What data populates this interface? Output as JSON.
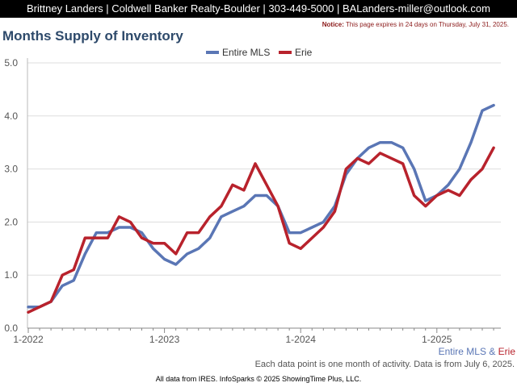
{
  "header": {
    "contact": "Brittney Landers | Coldwell Banker Realty-Boulder | 303-449-5000 | BALanders-miller@outlook.com"
  },
  "notice": {
    "label": "Notice:",
    "text": "This page expires in 24 days on Thursday, July 31, 2025."
  },
  "colors": {
    "entire_mls": "#5a76b5",
    "erie": "#b8222c",
    "title": "#2e4a6b",
    "notice": "#8b1a1a"
  },
  "caption": {
    "series1": "Entire MLS",
    "amp": " & ",
    "series2": "Erie"
  },
  "footnote": "Each data point is one month of activity. Data is from July 6, 2025.",
  "credits": "All data from IRES. InfoSparks © 2025 ShowingTime Plus, LLC.",
  "chart_data": {
    "type": "line",
    "title": "Months Supply of Inventory",
    "x": [
      "2022-01",
      "2022-02",
      "2022-03",
      "2022-04",
      "2022-05",
      "2022-06",
      "2022-07",
      "2022-08",
      "2022-09",
      "2022-10",
      "2022-11",
      "2022-12",
      "2023-01",
      "2023-02",
      "2023-03",
      "2023-04",
      "2023-05",
      "2023-06",
      "2023-07",
      "2023-08",
      "2023-09",
      "2023-10",
      "2023-11",
      "2023-12",
      "2024-01",
      "2024-02",
      "2024-03",
      "2024-04",
      "2024-05",
      "2024-06",
      "2024-07",
      "2024-08",
      "2024-09",
      "2024-10",
      "2024-11",
      "2024-12",
      "2025-01",
      "2025-02",
      "2025-03",
      "2025-04",
      "2025-05",
      "2025-06"
    ],
    "x_tick_labels": [
      "1-2022",
      "1-2023",
      "1-2024",
      "1-2025"
    ],
    "y_tick_labels": [
      "0.0",
      "1.0",
      "2.0",
      "3.0",
      "4.0",
      "5.0"
    ],
    "ylim": [
      0,
      5
    ],
    "grid": true,
    "legend": "top-center",
    "series": [
      {
        "name": "Entire MLS",
        "color": "#5a76b5",
        "values": [
          0.4,
          0.4,
          0.5,
          0.8,
          0.9,
          1.4,
          1.8,
          1.8,
          1.9,
          1.9,
          1.8,
          1.5,
          1.3,
          1.2,
          1.4,
          1.5,
          1.7,
          2.1,
          2.2,
          2.3,
          2.5,
          2.5,
          2.3,
          1.8,
          1.8,
          1.9,
          2.0,
          2.3,
          2.9,
          3.2,
          3.4,
          3.5,
          3.5,
          3.4,
          3.0,
          2.4,
          2.5,
          2.7,
          3.0,
          3.5,
          4.1,
          4.2
        ]
      },
      {
        "name": "Erie",
        "color": "#b8222c",
        "values": [
          0.3,
          0.4,
          0.5,
          1.0,
          1.1,
          1.7,
          1.7,
          1.7,
          2.1,
          2.0,
          1.7,
          1.6,
          1.6,
          1.4,
          1.8,
          1.8,
          2.1,
          2.3,
          2.7,
          2.6,
          3.1,
          2.7,
          2.3,
          1.6,
          1.5,
          1.7,
          1.9,
          2.2,
          3.0,
          3.2,
          3.1,
          3.3,
          3.2,
          3.1,
          2.5,
          2.3,
          2.5,
          2.6,
          2.5,
          2.8,
          3.0,
          3.4
        ]
      }
    ]
  }
}
